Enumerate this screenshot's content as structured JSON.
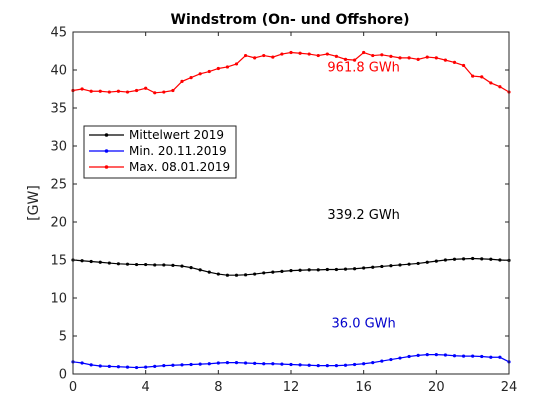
{
  "chart_data": {
    "type": "line",
    "title": "Windstrom (On- und Offshore)",
    "ylabel": "[GW]",
    "xlabel": "",
    "xlim": [
      0,
      24
    ],
    "ylim": [
      0,
      45
    ],
    "xticks": [
      0,
      4,
      8,
      12,
      16,
      20,
      24
    ],
    "yticks": [
      0,
      5,
      10,
      15,
      20,
      25,
      30,
      35,
      40,
      45
    ],
    "grid": false,
    "legend_position": "upper-left",
    "series": [
      {
        "name": "Mittelwert 2019",
        "color": "#000000",
        "x": [
          0,
          0.5,
          1,
          1.5,
          2,
          2.5,
          3,
          3.5,
          4,
          4.5,
          5,
          5.5,
          6,
          6.5,
          7,
          7.5,
          8,
          8.5,
          9,
          9.5,
          10,
          10.5,
          11,
          11.5,
          12,
          12.5,
          13,
          13.5,
          14,
          14.5,
          15,
          15.5,
          16,
          16.5,
          17,
          17.5,
          18,
          18.5,
          19,
          19.5,
          20,
          20.5,
          21,
          21.5,
          22,
          22.5,
          23,
          23.5,
          24
        ],
        "y": [
          15.0,
          14.9,
          14.8,
          14.7,
          14.6,
          14.5,
          14.45,
          14.4,
          14.4,
          14.35,
          14.35,
          14.3,
          14.2,
          14.0,
          13.7,
          13.4,
          13.15,
          13.0,
          13.0,
          13.05,
          13.15,
          13.3,
          13.4,
          13.5,
          13.6,
          13.65,
          13.7,
          13.7,
          13.75,
          13.75,
          13.8,
          13.85,
          13.95,
          14.05,
          14.15,
          14.25,
          14.35,
          14.45,
          14.55,
          14.7,
          14.85,
          15.0,
          15.1,
          15.15,
          15.2,
          15.15,
          15.1,
          15.0,
          14.95
        ]
      },
      {
        "name": "Min. 20.11.2019",
        "color": "#0000ff",
        "x": [
          0,
          0.5,
          1,
          1.5,
          2,
          2.5,
          3,
          3.5,
          4,
          4.5,
          5,
          5.5,
          6,
          6.5,
          7,
          7.5,
          8,
          8.5,
          9,
          9.5,
          10,
          10.5,
          11,
          11.5,
          12,
          12.5,
          13,
          13.5,
          14,
          14.5,
          15,
          15.5,
          16,
          16.5,
          17,
          17.5,
          18,
          18.5,
          19,
          19.5,
          20,
          20.5,
          21,
          21.5,
          22,
          22.5,
          23,
          23.5,
          24
        ],
        "y": [
          1.6,
          1.45,
          1.2,
          1.05,
          1.0,
          0.95,
          0.9,
          0.85,
          0.9,
          1.0,
          1.1,
          1.15,
          1.2,
          1.25,
          1.3,
          1.35,
          1.45,
          1.5,
          1.5,
          1.45,
          1.4,
          1.35,
          1.35,
          1.3,
          1.25,
          1.2,
          1.15,
          1.1,
          1.1,
          1.1,
          1.15,
          1.25,
          1.35,
          1.5,
          1.7,
          1.9,
          2.1,
          2.3,
          2.45,
          2.55,
          2.55,
          2.5,
          2.4,
          2.35,
          2.35,
          2.3,
          2.2,
          2.2,
          1.6
        ]
      },
      {
        "name": "Max. 08.01.2019",
        "color": "#ff0000",
        "x": [
          0,
          0.5,
          1,
          1.5,
          2,
          2.5,
          3,
          3.5,
          4,
          4.5,
          5,
          5.5,
          6,
          6.5,
          7,
          7.5,
          8,
          8.5,
          9,
          9.5,
          10,
          10.5,
          11,
          11.5,
          12,
          12.5,
          13,
          13.5,
          14,
          14.5,
          15,
          15.5,
          16,
          16.5,
          17,
          17.5,
          18,
          18.5,
          19,
          19.5,
          20,
          20.5,
          21,
          21.5,
          22,
          22.5,
          23,
          23.5,
          24
        ],
        "y": [
          37.3,
          37.5,
          37.2,
          37.2,
          37.1,
          37.2,
          37.1,
          37.3,
          37.6,
          37.0,
          37.1,
          37.3,
          38.5,
          39.0,
          39.5,
          39.8,
          40.2,
          40.4,
          40.8,
          41.9,
          41.6,
          41.9,
          41.7,
          42.1,
          42.3,
          42.2,
          42.1,
          41.9,
          42.1,
          41.8,
          41.4,
          41.3,
          42.3,
          41.9,
          42.0,
          41.8,
          41.6,
          41.6,
          41.4,
          41.7,
          41.6,
          41.3,
          41.0,
          40.6,
          39.2,
          39.1,
          38.3,
          37.8,
          37.1
        ]
      }
    ],
    "annotations": [
      {
        "text": "961.8 GWh",
        "x": 16,
        "y": 39.8,
        "color": "#ff0000"
      },
      {
        "text": "339.2 GWh",
        "x": 16,
        "y": 20.4,
        "color": "#000000"
      },
      {
        "text": "36.0 GWh",
        "x": 16,
        "y": 6.1,
        "color": "#0000cc"
      }
    ]
  }
}
